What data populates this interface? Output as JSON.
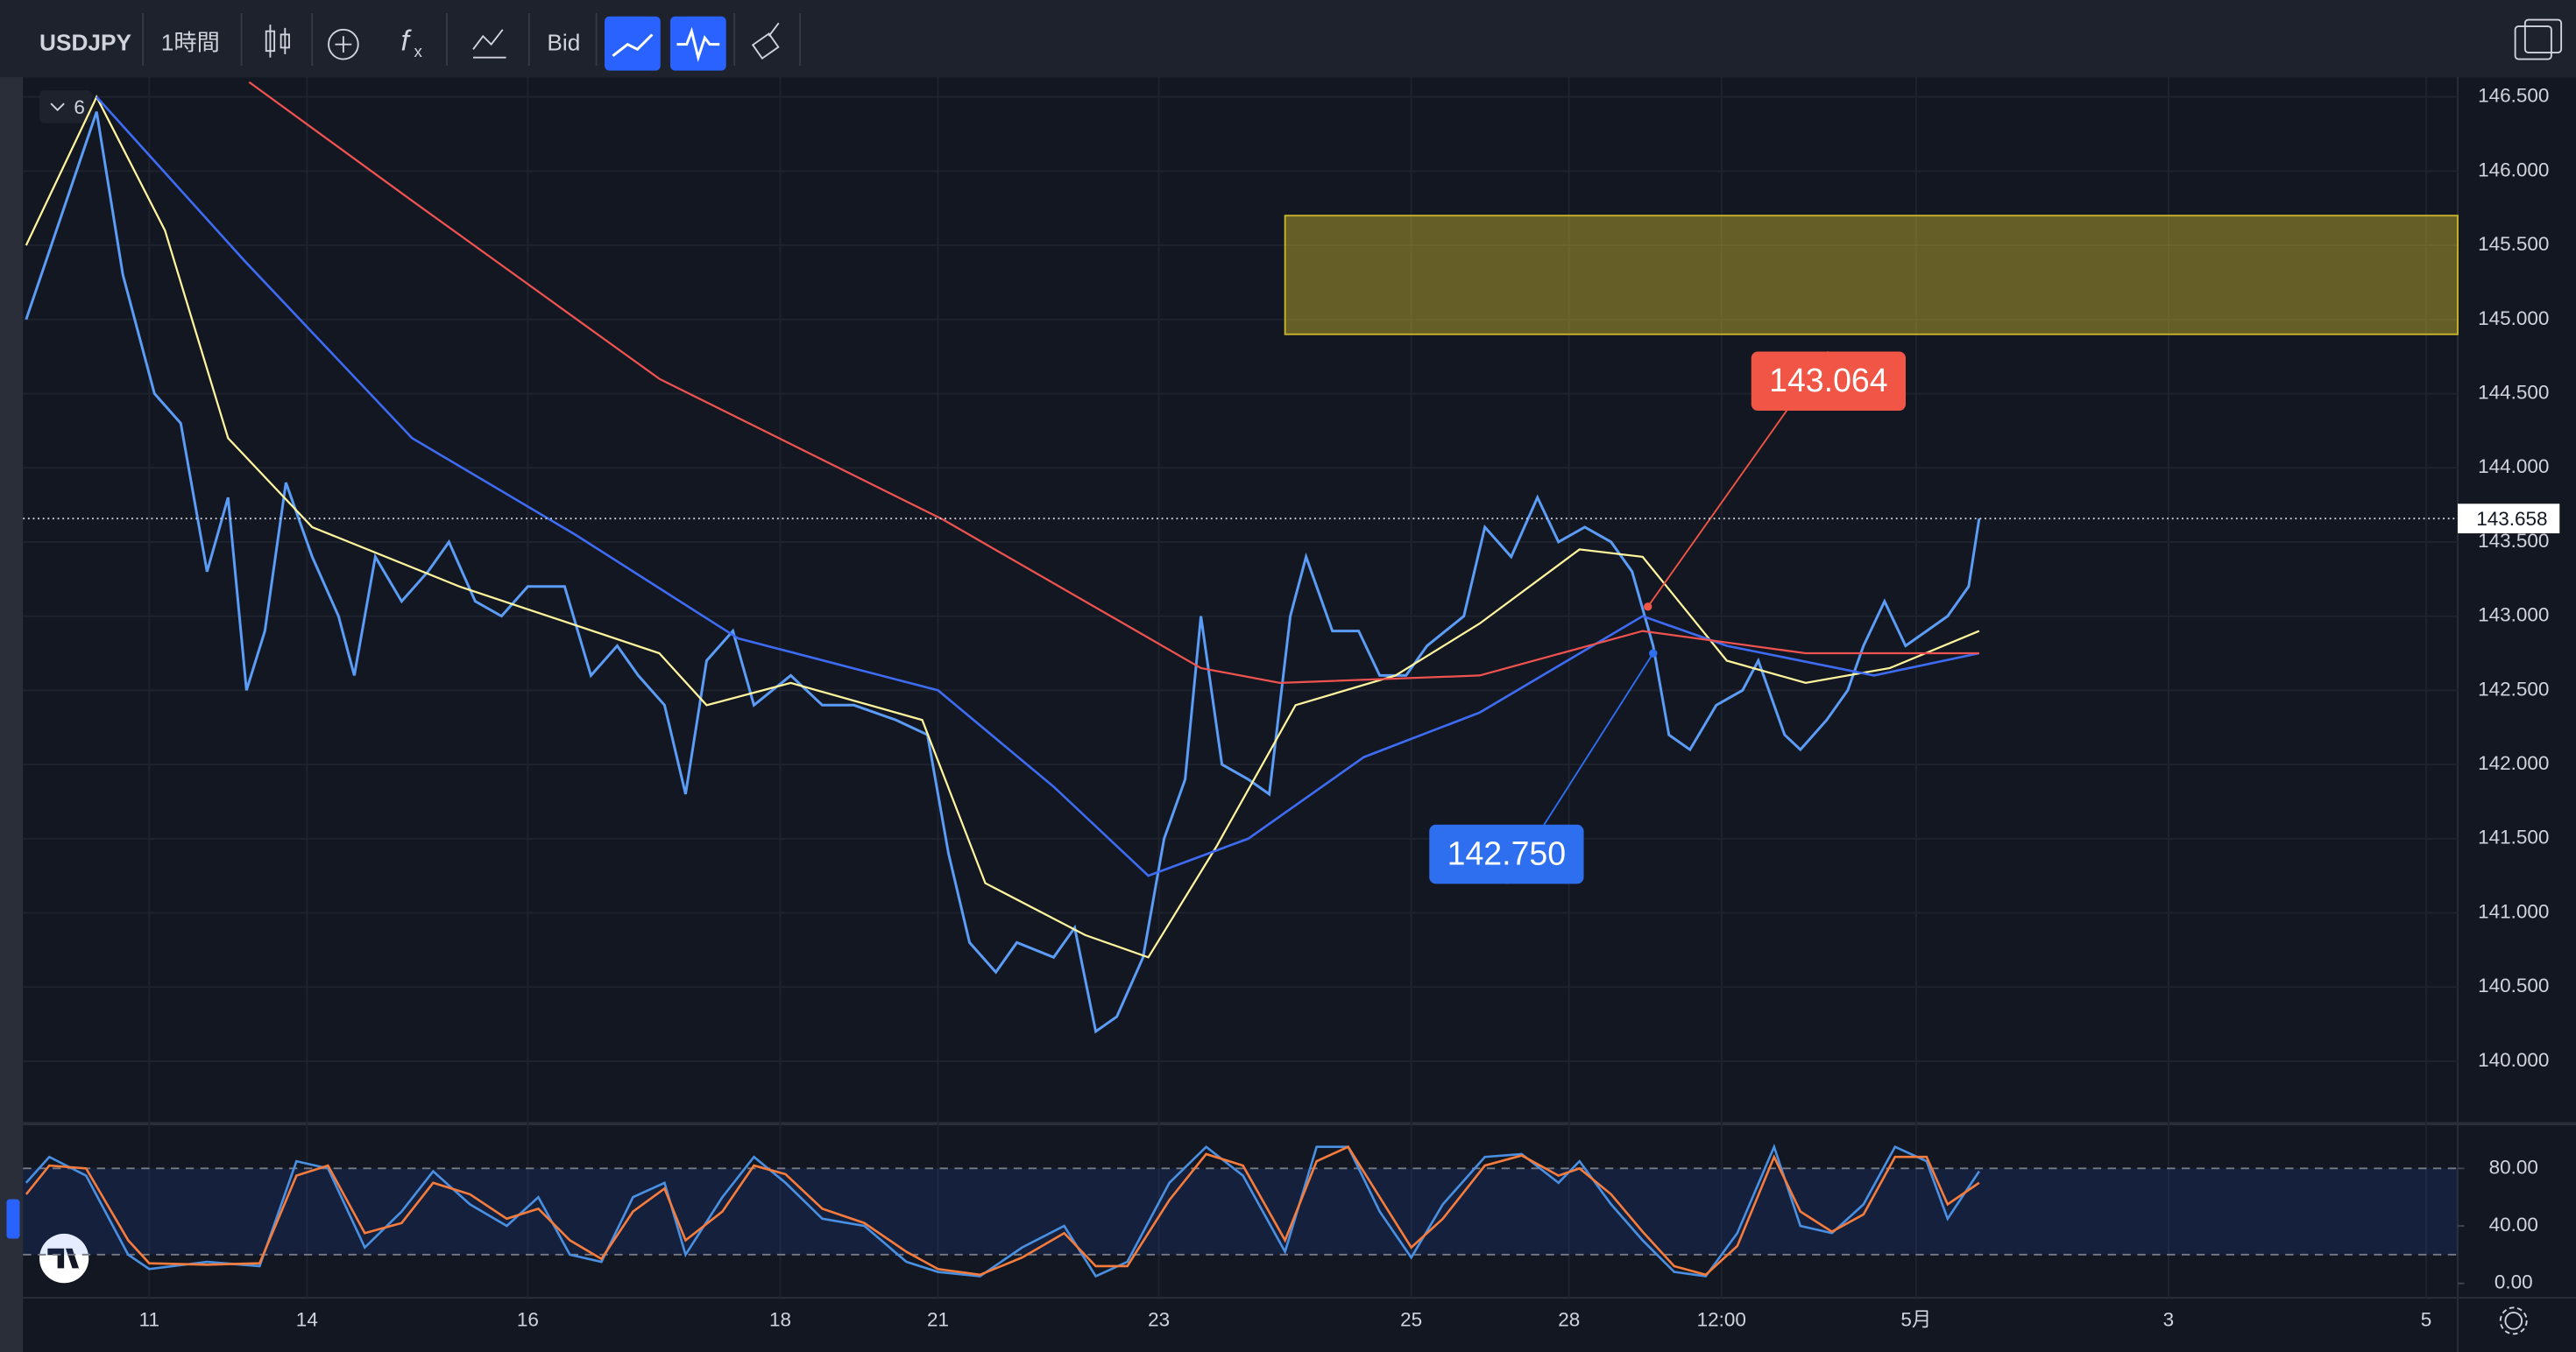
{
  "toolbar": {
    "symbol": "USDJPY",
    "interval": "1時間",
    "price_type": "Bid",
    "indicator_count": "6"
  },
  "chart_data": [
    {
      "type": "line",
      "xlim": [
        0,
        463
      ],
      "ylim": [
        139.59,
        146.633
      ],
      "grid": true,
      "xticks": [
        {
          "value": 24,
          "label": "11"
        },
        {
          "value": 54,
          "label": "14"
        },
        {
          "value": 96,
          "label": "16"
        },
        {
          "value": 144,
          "label": "18"
        },
        {
          "value": 174,
          "label": "21"
        },
        {
          "value": 216,
          "label": "23"
        },
        {
          "value": 264,
          "label": "25"
        },
        {
          "value": 294,
          "label": "28"
        },
        {
          "value": 323,
          "label": "12:00"
        },
        {
          "value": 360,
          "label": "5月"
        },
        {
          "value": 408,
          "label": "3"
        },
        {
          "value": 457,
          "label": "5"
        }
      ],
      "yticks": [
        {
          "value": 140,
          "label": "140.000"
        },
        {
          "value": 140.5,
          "label": "140.500"
        },
        {
          "value": 141,
          "label": "141.000"
        },
        {
          "value": 141.5,
          "label": "141.500"
        },
        {
          "value": 142,
          "label": "142.000"
        },
        {
          "value": 142.5,
          "label": "142.500"
        },
        {
          "value": 143,
          "label": "143.000"
        },
        {
          "value": 143.5,
          "label": "143.500"
        },
        {
          "value": 144,
          "label": "144.000"
        },
        {
          "value": 144.5,
          "label": "144.500"
        },
        {
          "value": 145,
          "label": "145.000"
        },
        {
          "value": 145.5,
          "label": "145.500"
        },
        {
          "value": 146,
          "label": "146.000"
        },
        {
          "value": 146.5,
          "label": "146.500"
        }
      ],
      "zone": {
        "x_range": [
          240,
          463
        ],
        "y_range": [
          144.9,
          145.7
        ],
        "color": "#c9b52c"
      },
      "last_price": 143.658,
      "annotations": [
        {
          "x": 309,
          "value": 143.064,
          "color": "#f05545"
        },
        {
          "x": 310,
          "value": 142.75,
          "label": "142.750",
          "color": "#2e6ff0"
        }
      ],
      "series": [
        {
          "color": "#5b9cf6",
          "width": 1.6,
          "x": [
            0.6,
            14,
            19,
            25,
            30,
            35,
            39,
            42.5,
            46,
            50,
            55,
            60,
            63,
            67,
            72,
            77,
            81,
            86,
            91,
            96,
            103,
            108,
            113,
            117,
            122,
            126,
            130,
            135,
            139,
            146,
            152,
            158,
            166,
            172,
            176,
            180,
            185,
            189,
            196,
            200,
            204,
            208,
            213,
            217,
            221,
            224,
            228,
            233,
            237,
            241,
            244,
            249,
            254,
            258,
            263,
            267,
            274,
            278,
            283,
            288,
            292,
            297,
            302,
            306,
            310,
            313,
            317,
            322,
            327,
            330,
            335,
            338,
            343,
            347,
            350,
            354,
            358,
            362,
            366,
            370,
            372
          ],
          "values": [
            145.0,
            146.4,
            145.3,
            144.5,
            144.3,
            143.3,
            143.8,
            142.5,
            142.9,
            143.9,
            143.4,
            143.0,
            142.6,
            143.4,
            143.1,
            143.3,
            143.5,
            143.1,
            143.0,
            143.2,
            143.2,
            142.6,
            142.8,
            142.6,
            142.4,
            141.8,
            142.7,
            142.9,
            142.4,
            142.6,
            142.4,
            142.4,
            142.3,
            142.2,
            141.4,
            140.8,
            140.6,
            140.8,
            140.7,
            140.9,
            140.2,
            140.3,
            140.7,
            141.5,
            141.9,
            143.0,
            142.0,
            141.9,
            141.8,
            143.0,
            143.4,
            142.9,
            142.9,
            142.6,
            142.6,
            142.8,
            143.0,
            143.6,
            143.4,
            143.8,
            143.5,
            143.6,
            143.5,
            143.3,
            142.8,
            142.2,
            142.1,
            142.4,
            142.5,
            142.7,
            142.2,
            142.1,
            142.3,
            142.5,
            142.8,
            143.1,
            142.8,
            142.9,
            143.0,
            143.2,
            143.658
          ]
        },
        {
          "color": "#fff59d",
          "width": 1.2,
          "x": [
            0.6,
            14,
            27,
            39,
            55,
            83,
            121,
            130,
            146,
            171,
            183,
            202,
            214,
            227,
            242,
            261,
            277,
            296,
            308,
            324,
            339,
            355,
            372
          ],
          "values": [
            145.5,
            146.5,
            145.6,
            144.2,
            143.6,
            143.2,
            142.75,
            142.4,
            142.55,
            142.3,
            141.2,
            140.85,
            140.7,
            141.45,
            142.4,
            142.6,
            142.95,
            143.45,
            143.4,
            142.7,
            142.55,
            142.65,
            142.9
          ]
        },
        {
          "color": "#3d6bf2",
          "width": 1.4,
          "x": [
            14,
            42,
            74,
            105,
            136,
            174,
            196,
            214,
            233,
            255,
            277,
            308,
            324,
            352,
            372
          ],
          "values": [
            146.5,
            145.4,
            144.2,
            143.55,
            142.85,
            142.5,
            141.85,
            141.25,
            141.5,
            142.05,
            142.35,
            143.0,
            142.8,
            142.6,
            142.75
          ]
        },
        {
          "color": "#ef5350",
          "width": 1.2,
          "x": [
            43,
            74,
            121,
            175,
            224,
            239,
            277,
            308,
            339,
            372
          ],
          "values": [
            146.6,
            145.8,
            144.6,
            143.65,
            142.65,
            142.55,
            142.6,
            142.9,
            142.75,
            142.75
          ]
        }
      ]
    },
    {
      "type": "line",
      "xlim": [
        0,
        463
      ],
      "ylim": [
        -10,
        110
      ],
      "band": [
        20,
        80
      ],
      "yticks": [
        {
          "value": 80,
          "label": "80.00"
        },
        {
          "value": 40,
          "label": "40.00"
        },
        {
          "value": 0,
          "label": "0.00"
        }
      ],
      "series": [
        {
          "color": "#4a90e2",
          "width": 1.4,
          "x": [
            0.6,
            5,
            12,
            20,
            24,
            35,
            45,
            52,
            58,
            65,
            72,
            78,
            85,
            92,
            98,
            104,
            110,
            116,
            122,
            126,
            133,
            139,
            145,
            152,
            160,
            168,
            174,
            182,
            190,
            198,
            204,
            210,
            218,
            225,
            232,
            240,
            246,
            252,
            258,
            264,
            270,
            278,
            285,
            292,
            296,
            302,
            308,
            314,
            320,
            326,
            333,
            338,
            344,
            350,
            356,
            362,
            366,
            372
          ],
          "values": [
            70,
            88,
            75,
            20,
            10,
            15,
            12,
            85,
            80,
            25,
            50,
            78,
            55,
            40,
            60,
            20,
            15,
            60,
            70,
            20,
            60,
            88,
            70,
            45,
            40,
            15,
            8,
            5,
            25,
            40,
            5,
            15,
            70,
            95,
            75,
            22,
            95,
            95,
            50,
            18,
            55,
            88,
            90,
            70,
            85,
            55,
            30,
            8,
            5,
            35,
            95,
            40,
            35,
            55,
            95,
            85,
            45,
            78
          ]
        },
        {
          "color": "#f57c3c",
          "width": 1.4,
          "x": [
            0.6,
            5,
            12,
            20,
            24,
            35,
            45,
            52,
            58,
            65,
            72,
            78,
            85,
            92,
            98,
            104,
            110,
            116,
            122,
            126,
            133,
            139,
            145,
            152,
            160,
            168,
            174,
            182,
            190,
            198,
            204,
            210,
            218,
            225,
            232,
            240,
            246,
            252,
            258,
            264,
            270,
            278,
            285,
            292,
            296,
            302,
            308,
            314,
            320,
            326,
            333,
            338,
            344,
            350,
            356,
            362,
            366,
            372
          ],
          "values": [
            62,
            82,
            80,
            30,
            14,
            13,
            14,
            75,
            82,
            35,
            42,
            70,
            62,
            45,
            52,
            30,
            17,
            50,
            66,
            30,
            50,
            82,
            76,
            52,
            42,
            22,
            10,
            6,
            18,
            35,
            12,
            12,
            58,
            90,
            82,
            30,
            85,
            95,
            60,
            25,
            45,
            82,
            89,
            75,
            80,
            62,
            36,
            12,
            6,
            26,
            88,
            50,
            36,
            48,
            88,
            88,
            55,
            70
          ]
        }
      ]
    }
  ]
}
